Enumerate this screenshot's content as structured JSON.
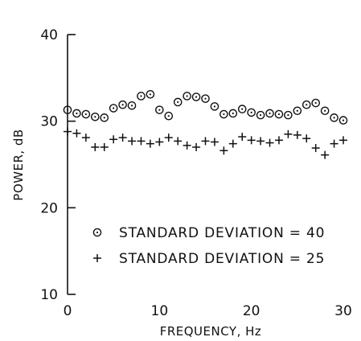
{
  "chart_data": {
    "type": "scatter",
    "xlabel": "FREQUENCY, Hz",
    "ylabel": "POWER, dB",
    "xlim": [
      0,
      30
    ],
    "ylim": [
      10,
      40
    ],
    "x_ticks": [
      "0",
      "10",
      "20",
      "30"
    ],
    "y_ticks": [
      "10",
      "20",
      "30",
      "40"
    ],
    "grid": false,
    "legend_position": "lower-right",
    "series": [
      {
        "name": "STANDARD DEVIATION = 40",
        "marker": "circle-dot",
        "x": [
          0,
          1,
          2,
          3,
          4,
          5,
          6,
          7,
          8,
          9,
          10,
          11,
          12,
          13,
          14,
          15,
          16,
          17,
          18,
          19,
          20,
          21,
          22,
          23,
          24,
          25,
          26,
          27,
          28,
          29,
          30
        ],
        "y": [
          31.3,
          30.9,
          30.8,
          30.5,
          30.4,
          31.5,
          31.9,
          31.8,
          32.9,
          33.1,
          31.3,
          30.6,
          32.2,
          32.9,
          32.8,
          32.6,
          31.7,
          30.8,
          30.9,
          31.4,
          31.0,
          30.7,
          30.9,
          30.8,
          30.7,
          31.2,
          31.9,
          32.1,
          31.2,
          30.4,
          30.1
        ]
      },
      {
        "name": "STANDARD DEVIATION = 25",
        "marker": "plus",
        "x": [
          0,
          1,
          2,
          3,
          4,
          5,
          6,
          7,
          8,
          9,
          10,
          11,
          12,
          13,
          14,
          15,
          16,
          17,
          18,
          19,
          20,
          21,
          22,
          23,
          24,
          25,
          26,
          27,
          28,
          29,
          30
        ],
        "y": [
          28.8,
          28.6,
          28.1,
          27.0,
          27.0,
          27.9,
          28.1,
          27.7,
          27.7,
          27.4,
          27.6,
          28.1,
          27.7,
          27.2,
          27.0,
          27.7,
          27.6,
          26.6,
          27.4,
          28.2,
          27.8,
          27.7,
          27.5,
          27.8,
          28.5,
          28.4,
          28.0,
          26.9,
          26.1,
          27.4,
          27.8
        ]
      }
    ]
  }
}
